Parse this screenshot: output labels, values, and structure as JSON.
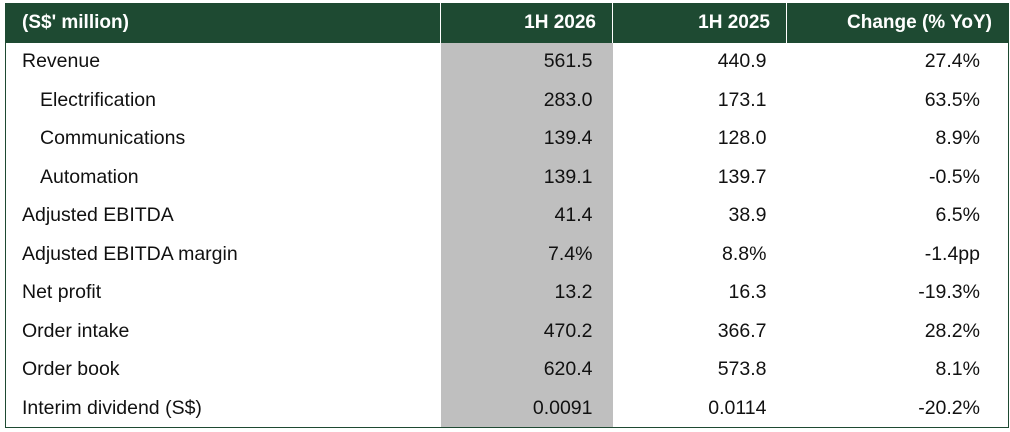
{
  "table": {
    "headers": [
      "(S$' million)",
      "1H 2026",
      "1H 2025",
      "Change (% YoY)"
    ],
    "rows": [
      {
        "label": "Revenue",
        "indent": false,
        "h1_2026": "561.5",
        "h1_2025": "440.9",
        "change": "27.4%"
      },
      {
        "label": "Electrification",
        "indent": true,
        "h1_2026": "283.0",
        "h1_2025": "173.1",
        "change": "63.5%"
      },
      {
        "label": "Communications",
        "indent": true,
        "h1_2026": "139.4",
        "h1_2025": "128.0",
        "change": "8.9%"
      },
      {
        "label": "Automation",
        "indent": true,
        "h1_2026": "139.1",
        "h1_2025": "139.7",
        "change": "-0.5%"
      },
      {
        "label": "Adjusted EBITDA",
        "indent": false,
        "h1_2026": "41.4",
        "h1_2025": "38.9",
        "change": "6.5%"
      },
      {
        "label": "Adjusted EBITDA margin",
        "indent": false,
        "h1_2026": "7.4%",
        "h1_2025": "8.8%",
        "change": "-1.4pp"
      },
      {
        "label": "Net profit",
        "indent": false,
        "h1_2026": "13.2",
        "h1_2025": "16.3",
        "change": "-19.3%"
      },
      {
        "label": "Order intake",
        "indent": false,
        "h1_2026": "470.2",
        "h1_2025": "366.7",
        "change": "28.2%"
      },
      {
        "label": "Order book",
        "indent": false,
        "h1_2026": "620.4",
        "h1_2025": "573.8",
        "change": "8.1%"
      },
      {
        "label": "Interim dividend (S$)",
        "indent": false,
        "h1_2026": "0.0091",
        "h1_2025": "0.0114",
        "change": "-20.2%"
      }
    ]
  },
  "colors": {
    "header_background": "#1e4a32",
    "header_text": "#ffffff",
    "highlight_column": "#bfbfbf",
    "body_text": "#111111"
  }
}
